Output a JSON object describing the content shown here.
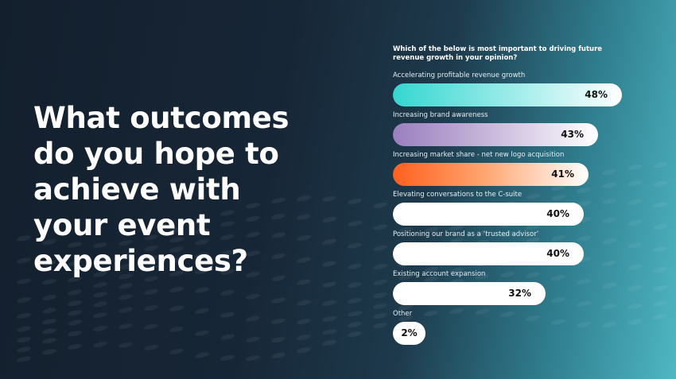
{
  "headline": "What outcomes do you hope to achieve with your event experiences?",
  "chart_data": {
    "type": "bar",
    "orientation": "horizontal",
    "title": "Which of the below is most important to driving future revenue growth in your opinion?",
    "categories": [
      "Accelerating profitable revenue growth",
      "Increasing brand awareness",
      "Increasing market share - net new logo acquisition",
      "Elevating conversations to the C-suite",
      "Positioning our brand as a ‘trusted advisor’",
      "Existing account expansion",
      "Other"
    ],
    "values": [
      48,
      43,
      41,
      40,
      40,
      32,
      2
    ],
    "value_labels": [
      "48%",
      "43%",
      "41%",
      "40%",
      "40%",
      "32%",
      "2%"
    ],
    "unit": "%",
    "colors": [
      "#3fd9d3",
      "#9b80c0",
      "#ff6a2b",
      "#ffffff",
      "#ffffff",
      "#ffffff",
      "#ffffff"
    ],
    "xlim": [
      0,
      48
    ],
    "grid": false
  }
}
